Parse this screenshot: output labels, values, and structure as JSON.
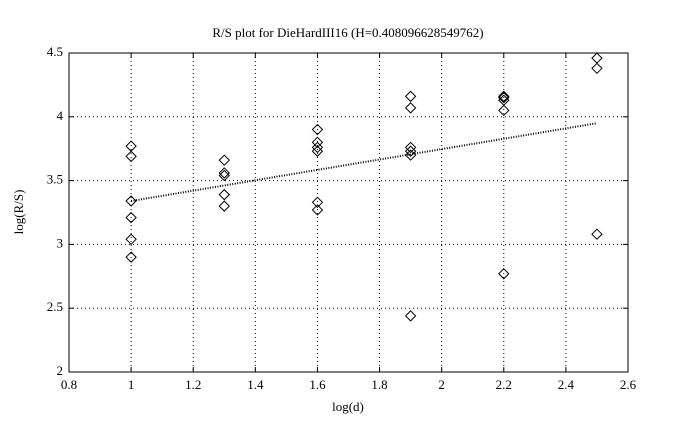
{
  "chart_data": {
    "type": "scatter",
    "title": "R/S plot for DieHardIII16 (H=0.408096628549762)",
    "x_label": "log(d)",
    "y_label": "log(R/S)",
    "x": [
      1,
      1,
      1,
      1,
      1,
      1,
      1.3,
      1.3,
      1.3,
      1.3,
      1.3,
      1.6,
      1.6,
      1.6,
      1.6,
      1.6,
      1.6,
      1.9,
      1.9,
      1.9,
      1.9,
      1.9,
      1.9,
      2.2,
      2.2,
      2.2,
      2.2,
      2.2,
      2.5,
      2.5,
      2.5
    ],
    "values": [
      3.77,
      3.69,
      3.34,
      3.21,
      3.04,
      2.9,
      3.66,
      3.56,
      3.54,
      3.39,
      3.3,
      3.9,
      3.8,
      3.76,
      3.73,
      3.33,
      3.27,
      4.16,
      4.07,
      3.76,
      3.73,
      3.7,
      2.44,
      4.16,
      4.15,
      4.13,
      4.05,
      2.77,
      4.46,
      4.38,
      3.08
    ],
    "fit_line": {
      "x": [
        1,
        2.5
      ],
      "values": [
        3.34,
        3.95
      ]
    },
    "xlim": [
      0.8,
      2.6
    ],
    "xticks": [
      0.8,
      1,
      1.2,
      1.4,
      1.6,
      1.8,
      2,
      2.2,
      2.4,
      2.6
    ],
    "ylim": [
      2,
      4.5
    ],
    "yticks": [
      2,
      2.5,
      3,
      3.5,
      4,
      4.5
    ],
    "grid": true,
    "color": "#000000"
  }
}
